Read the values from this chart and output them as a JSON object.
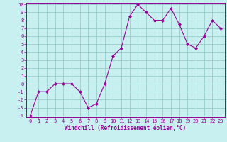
{
  "x": [
    0,
    1,
    2,
    3,
    4,
    5,
    6,
    7,
    8,
    9,
    10,
    11,
    12,
    13,
    14,
    15,
    16,
    17,
    18,
    19,
    20,
    21,
    22,
    23
  ],
  "y": [
    -4,
    -1,
    -1,
    0,
    0,
    0,
    -1,
    -3,
    -2.5,
    0,
    3.5,
    4.5,
    8.5,
    10,
    9,
    8,
    8,
    9.5,
    7.5,
    5,
    4.5,
    6,
    8,
    7
  ],
  "line_color": "#990099",
  "marker": "D",
  "marker_size": 2,
  "bg_color": "#c8f0f0",
  "grid_color": "#99cccc",
  "xlabel": "Windchill (Refroidissement éolien,°C)",
  "xlabel_color": "#990099",
  "xlabel_fontsize": 5.5,
  "tick_color": "#990099",
  "tick_fontsize": 5,
  "ylim": [
    -4,
    10
  ],
  "xlim": [
    -0.5,
    23.5
  ],
  "yticks": [
    -4,
    -3,
    -2,
    -1,
    0,
    1,
    2,
    3,
    4,
    5,
    6,
    7,
    8,
    9,
    10
  ],
  "xticks": [
    0,
    1,
    2,
    3,
    4,
    5,
    6,
    7,
    8,
    9,
    10,
    11,
    12,
    13,
    14,
    15,
    16,
    17,
    18,
    19,
    20,
    21,
    22,
    23
  ]
}
